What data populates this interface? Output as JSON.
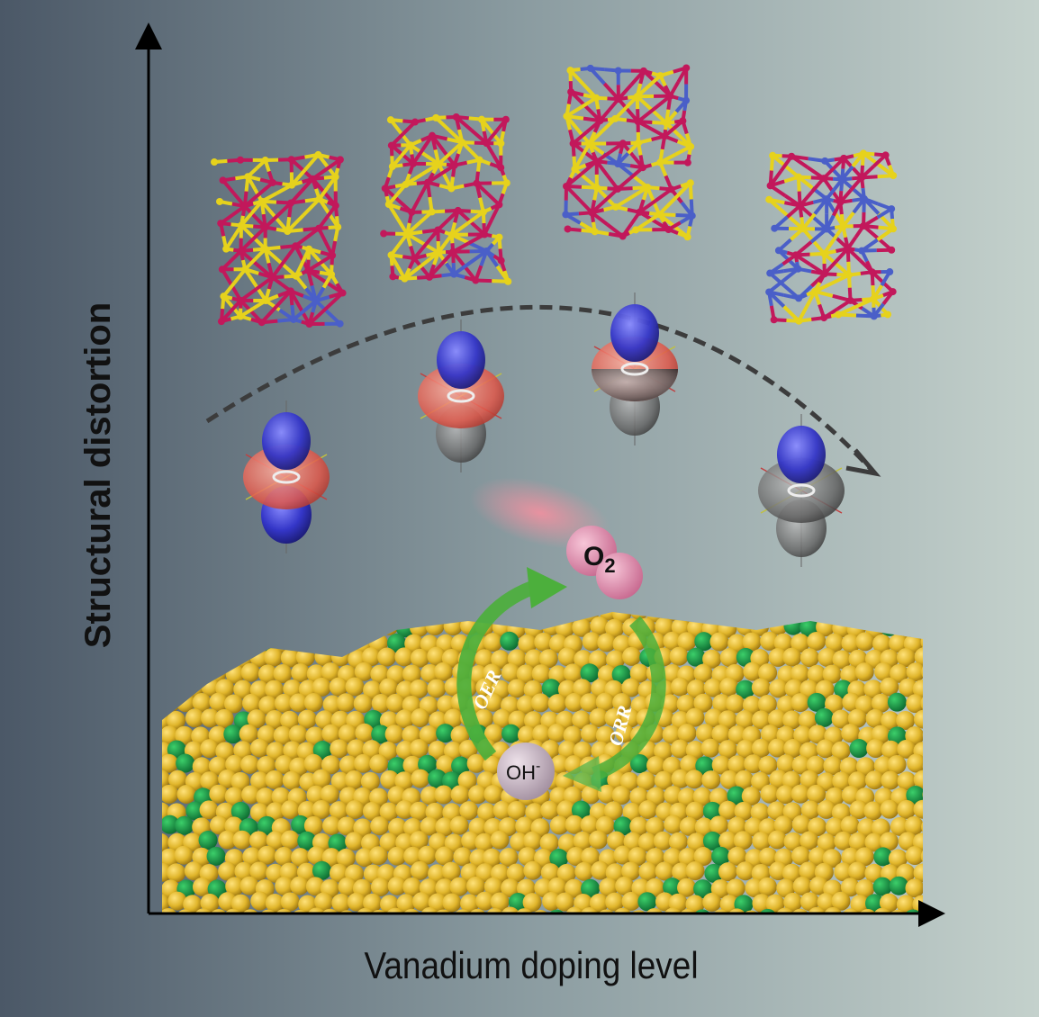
{
  "axes": {
    "y_label": "Structural distortion",
    "x_label": "Vanadium doping level"
  },
  "molecules": {
    "o2_main": "O",
    "o2_sub": "2",
    "oh_main": "OH",
    "oh_sup": "-"
  },
  "reactions": {
    "oer": "OER",
    "orr": "ORR"
  },
  "colors": {
    "background_left": "#4b5867",
    "background_right": "#c4d1cc",
    "metal_atom": "#c2185b",
    "sulfur_atom": "#e6d21c",
    "vanadium_atom": "#4a5fc8",
    "orbital_lobe": "#3436c8",
    "orbital_ring_red": "#e0584a",
    "orbital_ring_gray": "#555555",
    "nanoparticle": "#e0b52a",
    "dopant": "#1a9a4a",
    "cycle_arrow": "#4caf3c",
    "o2_molecule": "#d98aa8",
    "oh_molecule": "#c9b8c6"
  }
}
